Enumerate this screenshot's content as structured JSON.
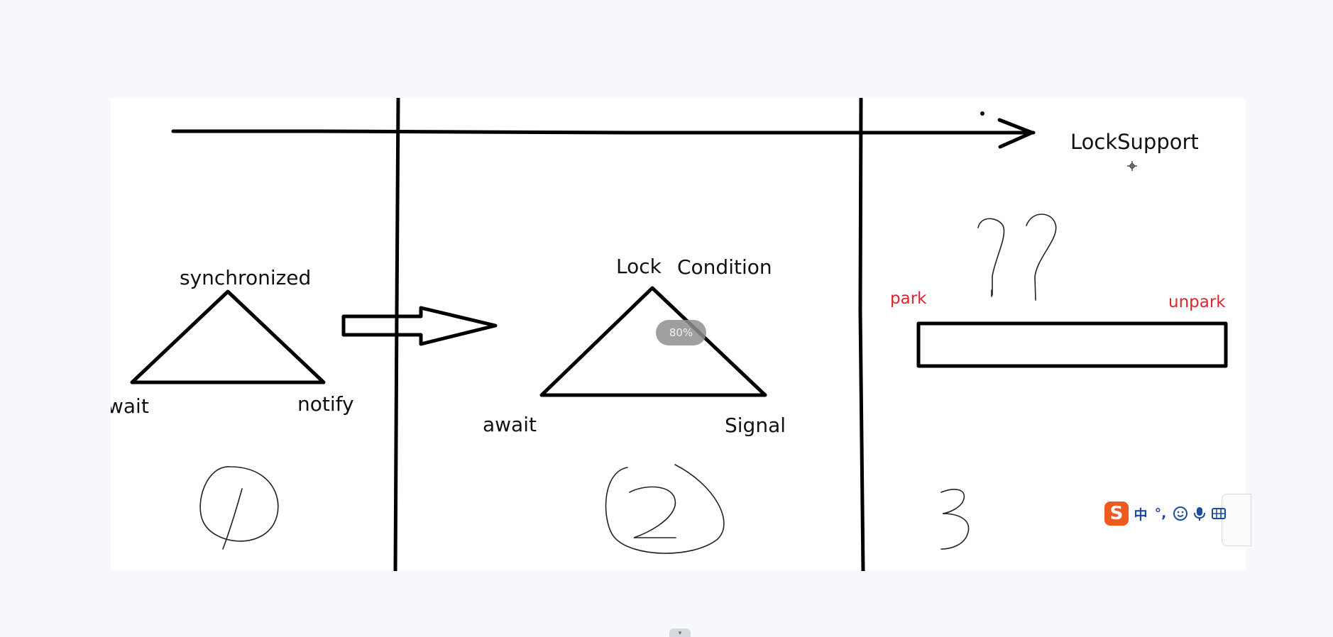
{
  "canvas": {
    "labels": {
      "lock_support": "LockSupport",
      "synchronized": "synchronized",
      "wait": "wait",
      "notify": "notify",
      "lock": "Lock",
      "condition": "Condition",
      "await": "await",
      "signal": "Signal",
      "park": "park",
      "unpark": "unpark"
    },
    "colors": {
      "ink": "#000000",
      "red_label": "#e0232a",
      "background": "#f7f8fc",
      "canvas": "#ffffff"
    }
  },
  "zoom_indicator": {
    "text": "80%"
  },
  "ime_toolbar": {
    "logo": "S",
    "mode_label": "中",
    "punct_label": "°,",
    "icons": [
      "emoji-icon",
      "microphone-icon",
      "keyboard-icon"
    ],
    "brand_color": "#ef5a1e",
    "icon_color": "#1a4d9c"
  },
  "scroll_handle": {
    "glyph": "▾"
  }
}
